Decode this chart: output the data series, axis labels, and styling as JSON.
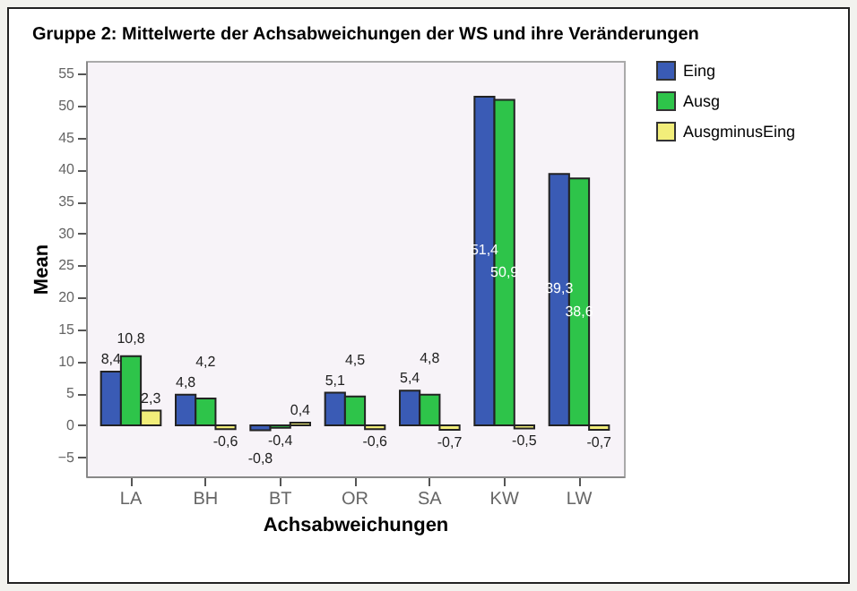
{
  "chart_data": {
    "type": "bar",
    "title": "Gruppe 2: Mittelwerte der Achsabweichungen der WS und ihre Veränderungen",
    "xlabel": "Achsabweichungen",
    "ylabel": "Mean",
    "categories": [
      "LA",
      "BH",
      "BT",
      "OR",
      "SA",
      "KW",
      "LW"
    ],
    "series": [
      {
        "name": "Eing",
        "color": "#3a5bb5",
        "values": [
          8.4,
          4.8,
          -0.8,
          5.1,
          5.4,
          51.4,
          39.3
        ],
        "value_labels": [
          "8,4",
          "4,8",
          "-0,8",
          "5,1",
          "5,4",
          "51,4",
          "39,3"
        ]
      },
      {
        "name": "Ausg",
        "color": "#2ec44a",
        "values": [
          10.8,
          4.2,
          -0.4,
          4.5,
          4.8,
          50.9,
          38.6
        ],
        "value_labels": [
          "10,8",
          "4,2",
          "-0,4",
          "4,5",
          "4,8",
          "50,9",
          "38,6"
        ]
      },
      {
        "name": "AusgminusEing",
        "color": "#f2ee7a",
        "values": [
          2.3,
          -0.6,
          0.4,
          -0.6,
          -0.7,
          -0.5,
          -0.7
        ],
        "value_labels": [
          "2,3",
          "-0,6",
          "0,4",
          "-0,6",
          "-0,7",
          "-0,5",
          "-0,7"
        ]
      }
    ],
    "ylim": [
      -8,
      57
    ],
    "yticks": [
      -5,
      0,
      5,
      10,
      15,
      20,
      25,
      30,
      35,
      40,
      45,
      50,
      55
    ],
    "legend": "top right"
  }
}
